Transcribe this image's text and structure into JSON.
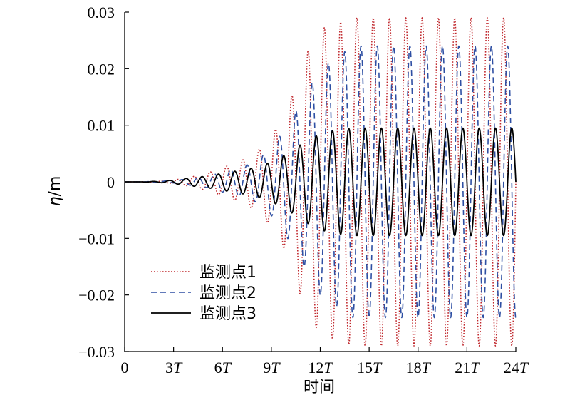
{
  "chart_data": {
    "type": "line",
    "title": "",
    "xlabel": "时间",
    "ylabel_symbol": "η",
    "ylabel_unit": "/m",
    "xlim": [
      0,
      24
    ],
    "ylim": [
      -0.03,
      0.03
    ],
    "x_unit": "T",
    "x_ticks": [
      0,
      3,
      6,
      9,
      12,
      15,
      18,
      21,
      24
    ],
    "x_tick_labels": [
      "0",
      "3",
      "6",
      "9",
      "12",
      "15",
      "18",
      "21",
      "24"
    ],
    "y_ticks": [
      0.03,
      0.02,
      0.01,
      0,
      -0.01,
      -0.02,
      -0.03
    ],
    "y_tick_labels": [
      "0.03",
      "0.02",
      "0.01",
      "0",
      "−0.01",
      "−0.02",
      "−0.03"
    ],
    "grid": false,
    "legend_position": "bottom-left",
    "series": [
      {
        "name": "监测点1",
        "color": "#c0282d",
        "style": "dotted",
        "x": [
          0,
          1,
          2,
          3,
          4,
          5,
          6,
          7,
          8,
          9,
          10,
          11,
          12,
          13,
          14,
          15,
          16,
          17,
          18,
          19,
          20,
          21,
          22,
          23,
          24
        ],
        "amplitude": [
          0,
          0,
          0.0001,
          0.0003,
          0.0008,
          0.0015,
          0.0025,
          0.0035,
          0.005,
          0.008,
          0.013,
          0.022,
          0.027,
          0.028,
          0.029,
          0.029,
          0.029,
          0.029,
          0.029,
          0.029,
          0.029,
          0.029,
          0.029,
          0.029,
          0.029
        ]
      },
      {
        "name": "监测点2",
        "color": "#2e4fa3",
        "style": "dashed",
        "x": [
          0,
          1,
          2,
          3,
          4,
          5,
          6,
          7,
          8,
          9,
          10,
          11,
          12,
          13,
          14,
          15,
          16,
          17,
          18,
          19,
          20,
          21,
          22,
          23,
          24
        ],
        "amplitude": [
          0,
          0,
          0.0001,
          0.0002,
          0.0006,
          0.001,
          0.0018,
          0.0025,
          0.0035,
          0.006,
          0.01,
          0.015,
          0.02,
          0.022,
          0.024,
          0.024,
          0.024,
          0.024,
          0.024,
          0.024,
          0.024,
          0.024,
          0.024,
          0.024,
          0.024
        ]
      },
      {
        "name": "监测点3",
        "color": "#000000",
        "style": "solid",
        "x": [
          0,
          1,
          2,
          3,
          4,
          5,
          6,
          7,
          8,
          9,
          10,
          11,
          12,
          13,
          14,
          15,
          16,
          17,
          18,
          19,
          20,
          21,
          22,
          23,
          24
        ],
        "amplitude": [
          0,
          0,
          0.0001,
          0.0003,
          0.0007,
          0.001,
          0.0015,
          0.002,
          0.0025,
          0.0035,
          0.005,
          0.007,
          0.0085,
          0.0092,
          0.0095,
          0.0095,
          0.0095,
          0.0095,
          0.0095,
          0.0095,
          0.0095,
          0.0095,
          0.0095,
          0.0095,
          0.0095
        ]
      }
    ]
  }
}
